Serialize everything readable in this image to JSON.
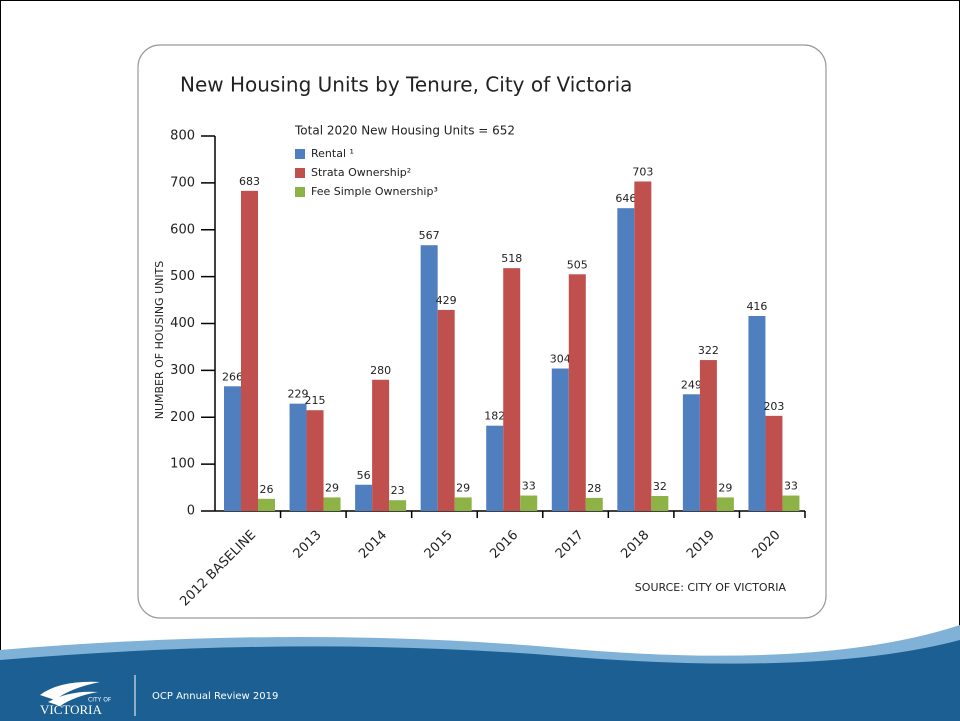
{
  "chart_data": {
    "type": "bar",
    "title": "New Housing Units by Tenure, City of Victoria",
    "subtitle": "Total 2020 New Housing Units = 652",
    "y_label": "NUMBER OF HOUSING UNITS",
    "source": "SOURCE:   CITY OF VICTORIA",
    "categories": [
      "2012 BASELINE",
      "2013",
      "2014",
      "2015",
      "2016",
      "2017",
      "2018",
      "2019",
      "2020"
    ],
    "series": [
      {
        "name": "Rental ¹",
        "color": "#4f7fbe",
        "values": [
          266,
          229,
          56,
          567,
          182,
          304,
          646,
          249,
          416
        ]
      },
      {
        "name": "Strata Ownership²",
        "color": "#c0504d",
        "values": [
          683,
          215,
          280,
          429,
          518,
          505,
          703,
          322,
          203
        ]
      },
      {
        "name": "Fee Simple Ownership³",
        "color": "#8db346",
        "values": [
          26,
          29,
          23,
          29,
          33,
          28,
          32,
          29,
          33
        ]
      }
    ],
    "ylim": [
      0,
      800
    ],
    "yticks": [
      0,
      100,
      200,
      300,
      400,
      500,
      600,
      700,
      800
    ],
    "grid": false
  },
  "footer": {
    "logo_top": "CITY OF",
    "logo": "VICTORIA",
    "text": "OCP Annual Review 2019"
  }
}
